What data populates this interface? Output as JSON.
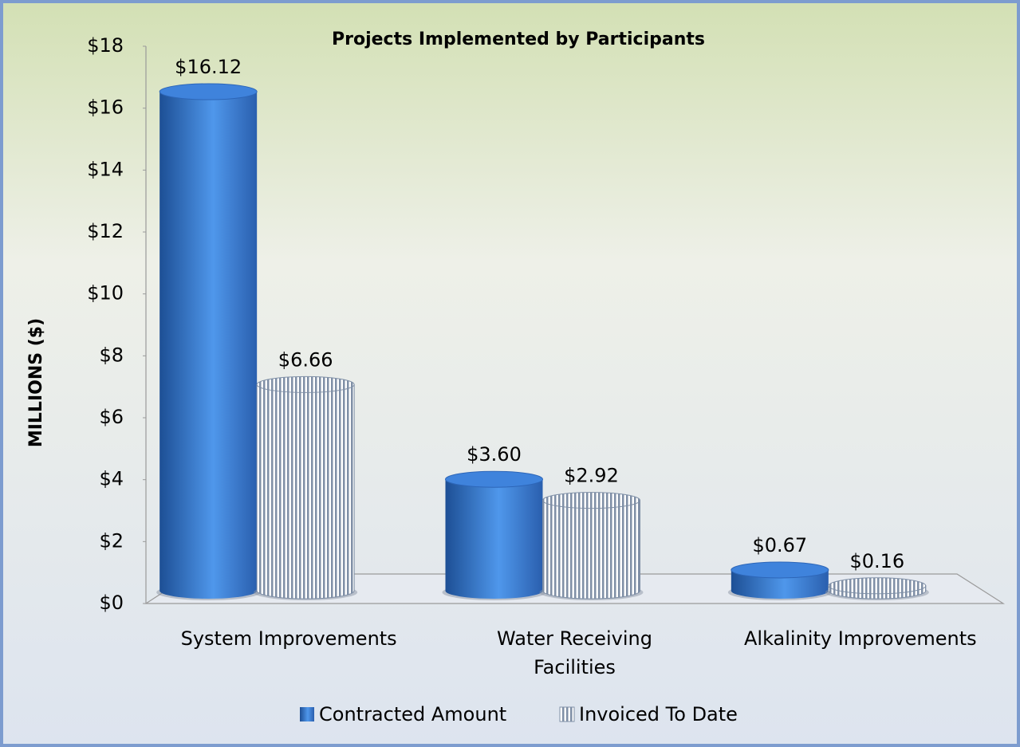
{
  "chart_data": {
    "type": "bar3d",
    "title": "Projects Implemented by Participants",
    "y_axis_label": "MILLIONS ($)",
    "categories": [
      "System Improvements",
      "Water Receiving Facilities",
      "Alkalinity Improvements"
    ],
    "series": [
      {
        "name": "Contracted Amount",
        "color": "#3a78d0",
        "values": [
          16.12,
          3.6,
          0.67
        ],
        "value_labels": [
          "$16.12",
          "$3.60",
          "$0.67"
        ]
      },
      {
        "name": "Invoiced To Date",
        "color": "#8f9fb4",
        "values": [
          6.66,
          2.92,
          0.16
        ],
        "value_labels": [
          "$6.66",
          "$2.92",
          "$0.16"
        ]
      }
    ],
    "ylim": [
      0,
      18
    ],
    "yticks": [
      {
        "value": 0,
        "label": "$0"
      },
      {
        "value": 2,
        "label": "$2"
      },
      {
        "value": 4,
        "label": "$4"
      },
      {
        "value": 6,
        "label": "$6"
      },
      {
        "value": 8,
        "label": "$8"
      },
      {
        "value": 10,
        "label": "$10"
      },
      {
        "value": 12,
        "label": "$12"
      },
      {
        "value": 14,
        "label": "$14"
      },
      {
        "value": 16,
        "label": "$16"
      },
      {
        "value": 18,
        "label": "$18"
      }
    ],
    "legend": "bottom"
  }
}
